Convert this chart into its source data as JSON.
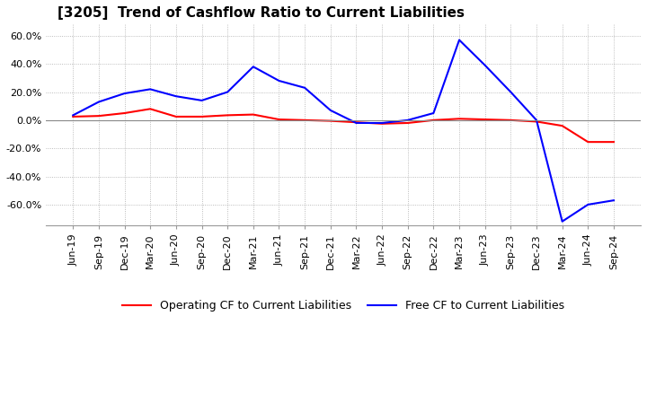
{
  "title": "[3205]  Trend of Cashflow Ratio to Current Liabilities",
  "ylim": [
    -0.75,
    0.68
  ],
  "yticks": [
    -0.6,
    -0.4,
    -0.2,
    0.0,
    0.2,
    0.4,
    0.6
  ],
  "x_labels": [
    "Jun-19",
    "Sep-19",
    "Dec-19",
    "Mar-20",
    "Jun-20",
    "Sep-20",
    "Dec-20",
    "Mar-21",
    "Jun-21",
    "Sep-21",
    "Dec-21",
    "Mar-22",
    "Jun-22",
    "Sep-22",
    "Dec-22",
    "Mar-23",
    "Jun-23",
    "Sep-23",
    "Dec-23",
    "Mar-24",
    "Jun-24",
    "Sep-24"
  ],
  "operating_cf": [
    0.025,
    0.03,
    0.05,
    0.08,
    0.025,
    0.025,
    0.035,
    0.04,
    0.005,
    0.0,
    -0.005,
    -0.015,
    -0.025,
    -0.02,
    0.0,
    0.01,
    0.005,
    0.0,
    -0.01,
    -0.04,
    -0.155,
    -0.155
  ],
  "free_cf": [
    0.035,
    0.13,
    0.19,
    0.22,
    0.17,
    0.14,
    0.2,
    0.38,
    0.28,
    0.23,
    0.07,
    -0.02,
    -0.02,
    0.0,
    0.05,
    0.57,
    0.39,
    0.2,
    0.0,
    -0.72,
    -0.6,
    -0.57
  ],
  "operating_color": "#ff0000",
  "free_color": "#0000ff",
  "grid_color": "#aaaaaa",
  "zero_line_color": "#888888",
  "background_color": "#ffffff",
  "title_fontsize": 11,
  "tick_fontsize": 8,
  "legend_fontsize": 9
}
